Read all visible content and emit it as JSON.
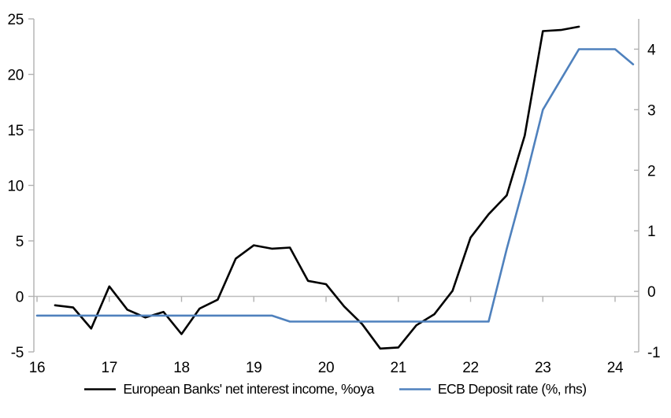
{
  "chart": {
    "colors": {
      "axis": "#b1b1b1",
      "gridline": "#bdbdbd",
      "text": "#000000"
    },
    "legend": [
      {
        "id": "nii",
        "label": "European Banks' net interest income, %oya",
        "color": "#000000"
      },
      {
        "id": "ecb",
        "label": "ECB Deposit rate (%, rhs)",
        "color": "#4f81bd"
      }
    ]
  },
  "chart_data": {
    "type": "line",
    "legend_position": "bottom-center",
    "grid": "zero-line-only",
    "x_axis": {
      "tick_labels": [
        "16",
        "17",
        "18",
        "19",
        "20",
        "21",
        "22",
        "23",
        "24"
      ],
      "tick_values": [
        16,
        17,
        18,
        19,
        20,
        21,
        22,
        23,
        24
      ],
      "range": [
        15.95,
        24.33
      ],
      "ticks_on_zero_line": true
    },
    "left_axis": {
      "tick_labels": [
        "-5",
        "0",
        "5",
        "10",
        "15",
        "20",
        "25"
      ],
      "tick_values": [
        -5,
        0,
        5,
        10,
        15,
        20,
        25
      ],
      "range": [
        -5,
        25
      ]
    },
    "right_axis": {
      "tick_labels": [
        "-1",
        "0",
        "1",
        "2",
        "3",
        "4"
      ],
      "tick_values": [
        -1,
        0,
        1,
        2,
        3,
        4
      ],
      "range": [
        -1,
        4.5
      ]
    },
    "series": [
      {
        "name": "European Banks' net interest income, %oya",
        "axis": "left",
        "color": "#000000",
        "x": [
          16.25,
          16.5,
          16.75,
          17,
          17.25,
          17.5,
          17.75,
          18,
          18.25,
          18.5,
          18.75,
          19,
          19.25,
          19.5,
          19.75,
          20,
          20.25,
          20.5,
          20.75,
          21,
          21.25,
          21.5,
          21.75,
          22,
          22.25,
          22.5,
          22.75,
          23,
          23.25,
          23.5
        ],
        "values": [
          -0.8,
          -1.0,
          -2.9,
          0.9,
          -1.2,
          -1.9,
          -1.4,
          -3.4,
          -1.1,
          -0.3,
          3.4,
          4.6,
          4.3,
          4.4,
          1.4,
          1.1,
          -0.9,
          -2.5,
          -4.7,
          -4.6,
          -2.6,
          -1.6,
          0.5,
          5.3,
          7.4,
          9.1,
          14.5,
          23.9,
          24.0,
          24.3
        ]
      },
      {
        "name": "ECB Deposit rate (%, rhs)",
        "axis": "right",
        "color": "#4f81bd",
        "x": [
          16,
          16.25,
          16.5,
          16.75,
          17,
          17.25,
          17.5,
          17.75,
          18,
          18.25,
          18.5,
          18.75,
          19,
          19.25,
          19.5,
          19.75,
          20,
          20.25,
          20.5,
          20.75,
          21,
          21.25,
          21.5,
          21.75,
          22,
          22.25,
          22.5,
          22.75,
          23,
          23.25,
          23.5,
          23.75,
          24,
          24.25
        ],
        "values": [
          -0.4,
          -0.4,
          -0.4,
          -0.4,
          -0.4,
          -0.4,
          -0.4,
          -0.4,
          -0.4,
          -0.4,
          -0.4,
          -0.4,
          -0.4,
          -0.4,
          -0.5,
          -0.5,
          -0.5,
          -0.5,
          -0.5,
          -0.5,
          -0.5,
          -0.5,
          -0.5,
          -0.5,
          -0.5,
          -0.5,
          0.7,
          1.8,
          3.0,
          3.5,
          4.0,
          4.0,
          4.0,
          3.75
        ]
      }
    ]
  }
}
